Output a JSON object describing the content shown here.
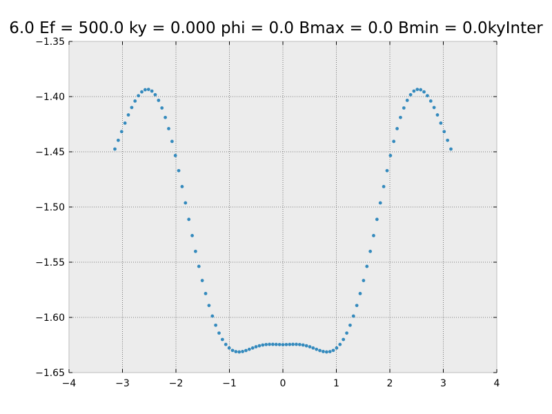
{
  "chart_data": {
    "type": "scatter",
    "title": "6.0 Ef = 500.0 ky = 0.000 phi = 0.0 Bmax = 0.0 Bmin = 0.0kyInter",
    "xlabel": "",
    "ylabel": "",
    "xlim": [
      -4,
      4
    ],
    "ylim": [
      -1.65,
      -1.35
    ],
    "xticks": [
      -4,
      -3,
      -2,
      -1,
      0,
      1,
      2,
      3,
      4
    ],
    "xtick_labels": [
      "−4",
      "−3",
      "−2",
      "−1",
      "0",
      "1",
      "2",
      "3",
      "4"
    ],
    "yticks": [
      -1.35,
      -1.4,
      -1.45,
      -1.5,
      -1.55,
      -1.6,
      -1.65
    ],
    "ytick_labels": [
      "−1.35",
      "−1.40",
      "−1.45",
      "−1.50",
      "−1.55",
      "−1.60",
      "−1.65"
    ],
    "grid": true,
    "legend": "none",
    "colors": {
      "marker": "#348abd",
      "axes_background": "#ececec",
      "grid": "#555555",
      "frame": "#bcbcbc"
    },
    "series": [
      {
        "x": [
          -3.142,
          -3.079,
          -3.016,
          -2.953,
          -2.89,
          -2.827,
          -2.765,
          -2.702,
          -2.639,
          -2.576,
          -2.513,
          -2.45,
          -2.388,
          -2.325,
          -2.262,
          -2.199,
          -2.136,
          -2.073,
          -2.011,
          -1.948,
          -1.885,
          -1.822,
          -1.759,
          -1.696,
          -1.634,
          -1.571,
          -1.508,
          -1.445,
          -1.382,
          -1.319,
          -1.257,
          -1.194,
          -1.131,
          -1.068,
          -1.005,
          -0.942,
          -0.88,
          -0.817,
          -0.754,
          -0.691,
          -0.628,
          -0.565,
          -0.503,
          -0.44,
          -0.377,
          -0.314,
          -0.251,
          -0.188,
          -0.126,
          -0.063,
          0.0,
          0.063,
          0.126,
          0.188,
          0.251,
          0.314,
          0.377,
          0.44,
          0.503,
          0.565,
          0.628,
          0.691,
          0.754,
          0.817,
          0.88,
          0.942,
          1.005,
          1.068,
          1.131,
          1.194,
          1.257,
          1.319,
          1.382,
          1.445,
          1.508,
          1.571,
          1.634,
          1.696,
          1.759,
          1.822,
          1.885,
          1.948,
          2.011,
          2.073,
          2.136,
          2.199,
          2.262,
          2.325,
          2.388,
          2.45,
          2.513,
          2.576,
          2.639,
          2.702,
          2.765,
          2.827,
          2.89,
          2.953,
          3.016,
          3.079,
          3.142
        ],
        "y": [
          -1.4475,
          -1.4396,
          -1.4317,
          -1.424,
          -1.4166,
          -1.4099,
          -1.404,
          -1.3992,
          -1.3957,
          -1.3938,
          -1.3935,
          -1.395,
          -1.3983,
          -1.4034,
          -1.4103,
          -1.4189,
          -1.429,
          -1.4406,
          -1.4534,
          -1.4671,
          -1.4815,
          -1.4963,
          -1.5112,
          -1.5259,
          -1.5402,
          -1.5538,
          -1.5666,
          -1.5784,
          -1.5892,
          -1.5988,
          -1.6071,
          -1.6142,
          -1.62,
          -1.6245,
          -1.6277,
          -1.6299,
          -1.631,
          -1.6313,
          -1.6309,
          -1.63,
          -1.6289,
          -1.6277,
          -1.6266,
          -1.6257,
          -1.625,
          -1.6246,
          -1.6244,
          -1.6244,
          -1.6245,
          -1.6246,
          -1.6247,
          -1.6246,
          -1.6245,
          -1.6244,
          -1.6244,
          -1.6246,
          -1.625,
          -1.6257,
          -1.6266,
          -1.6277,
          -1.6289,
          -1.63,
          -1.6309,
          -1.6313,
          -1.631,
          -1.6299,
          -1.6277,
          -1.6245,
          -1.62,
          -1.6142,
          -1.6071,
          -1.5988,
          -1.5892,
          -1.5784,
          -1.5666,
          -1.5538,
          -1.5402,
          -1.5259,
          -1.5112,
          -1.4963,
          -1.4815,
          -1.4671,
          -1.4534,
          -1.4406,
          -1.429,
          -1.4189,
          -1.4103,
          -1.4034,
          -1.3983,
          -1.395,
          -1.3935,
          -1.3938,
          -1.3957,
          -1.3992,
          -1.404,
          -1.4099,
          -1.4166,
          -1.424,
          -1.4317,
          -1.4396,
          -1.4475
        ]
      }
    ]
  }
}
